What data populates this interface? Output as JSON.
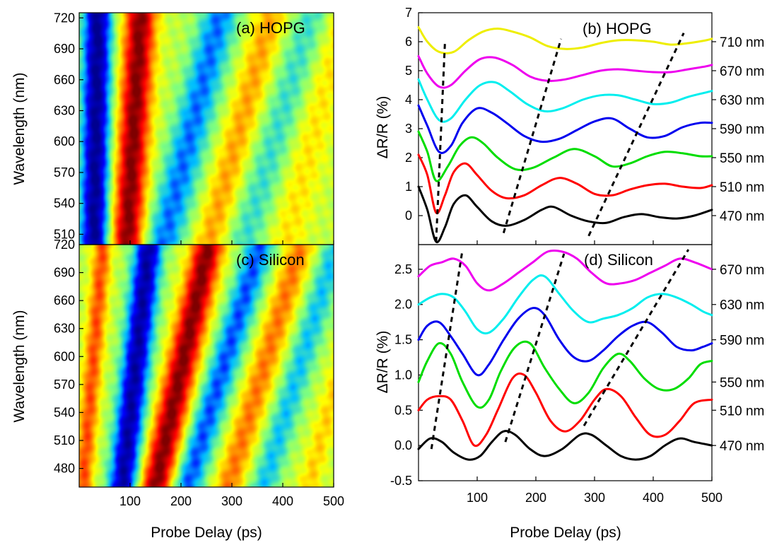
{
  "chart_data": [
    {
      "type": "heatmap",
      "panel": "(a) HOPG",
      "xlim": [
        0,
        500
      ],
      "ylim": [
        500,
        725
      ],
      "xticks": [
        "100",
        "200",
        "300",
        "400",
        "500"
      ],
      "yticks": [
        "510",
        "540",
        "570",
        "600",
        "630",
        "660",
        "690",
        "720"
      ],
      "ylabel": "Wavelength (nm)",
      "colormap": [
        "#00008f",
        "#0000ff",
        "#00bfff",
        "#7fff7f",
        "#ffff00",
        "#ff7f00",
        "#ff0000",
        "#7f0000"
      ],
      "bands": [
        {
          "delay_at_510": 30,
          "slope_ps_per_nm": 0.03,
          "amp": -1.0,
          "width": 28
        },
        {
          "delay_at_510": 95,
          "slope_ps_per_nm": 0.12,
          "amp": 1.0,
          "width": 30
        },
        {
          "delay_at_510": 170,
          "slope_ps_per_nm": 0.5,
          "amp": -0.55,
          "width": 38
        },
        {
          "delay_at_510": 260,
          "slope_ps_per_nm": 0.55,
          "amp": 0.35,
          "width": 32
        },
        {
          "delay_at_510": 330,
          "slope_ps_per_nm": 0.6,
          "amp": -0.3,
          "width": 38
        },
        {
          "delay_at_510": 410,
          "slope_ps_per_nm": 0.5,
          "amp": 0.2,
          "width": 38
        }
      ]
    },
    {
      "type": "heatmap",
      "panel": "(c) Silicon",
      "xlim": [
        0,
        500
      ],
      "ylim": [
        460,
        720
      ],
      "xticks": [
        "100",
        "200",
        "300",
        "400",
        "500"
      ],
      "yticks": [
        "480",
        "510",
        "540",
        "570",
        "600",
        "630",
        "660",
        "690",
        "720"
      ],
      "ylabel": "Wavelength (nm)",
      "xlabel": "Probe Delay (ps)",
      "bands": [
        {
          "delay_at_510": 15,
          "slope_ps_per_nm": 0.15,
          "amp": 0.55,
          "width": 18
        },
        {
          "delay_at_510": 95,
          "slope_ps_per_nm": 0.2,
          "amp": -0.95,
          "width": 28
        },
        {
          "delay_at_510": 170,
          "slope_ps_per_nm": 0.4,
          "amp": 1.0,
          "width": 30
        },
        {
          "delay_at_510": 240,
          "slope_ps_per_nm": 0.55,
          "amp": -0.6,
          "width": 30
        },
        {
          "delay_at_510": 320,
          "slope_ps_per_nm": 0.55,
          "amp": 0.45,
          "width": 28
        },
        {
          "delay_at_510": 390,
          "slope_ps_per_nm": 0.55,
          "amp": -0.4,
          "width": 28
        },
        {
          "delay_at_510": 475,
          "slope_ps_per_nm": 0.5,
          "amp": 0.25,
          "width": 22
        }
      ]
    },
    {
      "type": "line",
      "panel": "(b) HOPG",
      "xlim": [
        0,
        500
      ],
      "ylim": [
        -1,
        7
      ],
      "xticks": [
        "100",
        "200",
        "300",
        "400",
        "500"
      ],
      "yticks": [
        "0",
        "1",
        "2",
        "3",
        "4",
        "5",
        "6",
        "7"
      ],
      "ylabel": "ΔR/R (%)",
      "series": [
        {
          "name": "470 nm",
          "color": "#000000",
          "offset": 0.0,
          "x": [
            0,
            15,
            30,
            45,
            60,
            80,
            100,
            125,
            150,
            180,
            210,
            230,
            260,
            290,
            320,
            350,
            380,
            410,
            440,
            470,
            500
          ],
          "y": [
            1.0,
            0.2,
            -0.9,
            -0.4,
            0.4,
            0.7,
            0.3,
            -0.2,
            -0.35,
            -0.15,
            0.2,
            0.3,
            0.0,
            -0.2,
            -0.25,
            -0.05,
            0.05,
            -0.05,
            -0.1,
            0.0,
            0.2
          ]
        },
        {
          "name": "510 nm",
          "color": "#ff0000",
          "offset": 1.0,
          "x": [
            0,
            15,
            30,
            45,
            60,
            80,
            100,
            125,
            150,
            180,
            210,
            240,
            270,
            300,
            330,
            360,
            390,
            420,
            450,
            480,
            500
          ],
          "y": [
            1.1,
            0.4,
            -0.9,
            -0.3,
            0.5,
            0.8,
            0.4,
            -0.15,
            -0.4,
            -0.3,
            0.05,
            0.3,
            0.1,
            -0.25,
            -0.3,
            -0.1,
            0.05,
            0.1,
            0.0,
            -0.05,
            0.05
          ]
        },
        {
          "name": "550 nm",
          "color": "#00dd00",
          "offset": 2.0,
          "x": [
            0,
            15,
            30,
            50,
            70,
            90,
            110,
            135,
            165,
            195,
            230,
            265,
            300,
            330,
            360,
            390,
            420,
            450,
            480,
            500
          ],
          "y": [
            0.9,
            0.2,
            -0.8,
            -0.3,
            0.4,
            0.7,
            0.5,
            0.0,
            -0.4,
            -0.35,
            0.0,
            0.3,
            0.05,
            -0.3,
            -0.2,
            0.05,
            0.2,
            0.15,
            0.05,
            0.05
          ]
        },
        {
          "name": "590 nm",
          "color": "#0000ee",
          "offset": 3.0,
          "x": [
            0,
            15,
            35,
            55,
            75,
            100,
            125,
            150,
            180,
            210,
            240,
            270,
            300,
            330,
            360,
            390,
            420,
            450,
            480,
            500
          ],
          "y": [
            0.8,
            0.1,
            -0.8,
            -0.6,
            0.2,
            0.7,
            0.55,
            0.2,
            -0.25,
            -0.45,
            -0.35,
            -0.05,
            0.25,
            0.35,
            0.0,
            -0.3,
            -0.25,
            0.05,
            0.2,
            0.2
          ]
        },
        {
          "name": "630 nm",
          "color": "#00eeee",
          "offset": 4.0,
          "x": [
            0,
            15,
            35,
            55,
            80,
            105,
            130,
            155,
            185,
            215,
            245,
            280,
            310,
            340,
            370,
            400,
            430,
            460,
            490,
            500
          ],
          "y": [
            0.7,
            0.0,
            -0.7,
            -0.65,
            0.0,
            0.5,
            0.6,
            0.3,
            -0.15,
            -0.4,
            -0.3,
            0.0,
            0.15,
            0.15,
            0.0,
            -0.15,
            -0.1,
            0.1,
            0.25,
            0.3
          ]
        },
        {
          "name": "670 nm",
          "color": "#ee00ee",
          "offset": 5.0,
          "x": [
            0,
            15,
            35,
            55,
            80,
            105,
            130,
            160,
            190,
            220,
            250,
            280,
            310,
            340,
            370,
            400,
            430,
            460,
            490,
            500
          ],
          "y": [
            0.5,
            -0.1,
            -0.55,
            -0.5,
            0.0,
            0.4,
            0.45,
            0.2,
            -0.2,
            -0.35,
            -0.3,
            -0.15,
            0.0,
            0.05,
            0.0,
            -0.05,
            -0.05,
            0.05,
            0.15,
            0.2
          ]
        },
        {
          "name": "710 nm",
          "color": "#eeee00",
          "offset": 6.0,
          "x": [
            0,
            15,
            35,
            60,
            85,
            110,
            135,
            160,
            190,
            220,
            250,
            280,
            310,
            340,
            370,
            400,
            430,
            460,
            490,
            500
          ],
          "y": [
            0.5,
            0.0,
            -0.35,
            -0.35,
            0.05,
            0.35,
            0.45,
            0.35,
            0.15,
            -0.15,
            -0.25,
            -0.2,
            -0.05,
            0.05,
            0.05,
            0.0,
            -0.1,
            -0.05,
            0.05,
            0.1
          ]
        }
      ],
      "dashed_guides": [
        {
          "x": [
            30,
            45
          ],
          "y": [
            -0.9,
            5.95
          ]
        },
        {
          "x": [
            145,
            243
          ],
          "y": [
            -0.6,
            6.1
          ]
        },
        {
          "x": [
            290,
            452
          ],
          "y": [
            -0.7,
            6.3
          ]
        }
      ]
    },
    {
      "type": "line",
      "panel": "(d) Silicon",
      "xlim": [
        0,
        500
      ],
      "ylim": [
        -0.5,
        2.85
      ],
      "xticks": [
        "100",
        "200",
        "300",
        "400",
        "500"
      ],
      "yticks": [
        "-0.5",
        "0.0",
        "0.5",
        "1.0",
        "1.5",
        "2.0",
        "2.5"
      ],
      "ylabel": "ΔR/R (%)",
      "xlabel": "Probe Delay (ps)",
      "series": [
        {
          "name": "470 nm",
          "color": "#000000",
          "offset": 0.0,
          "x": [
            0,
            20,
            40,
            60,
            85,
            105,
            125,
            145,
            165,
            190,
            215,
            245,
            275,
            295,
            320,
            345,
            370,
            395,
            420,
            445,
            470,
            500
          ],
          "y": [
            -0.05,
            0.1,
            0.05,
            -0.1,
            -0.2,
            -0.15,
            0.05,
            0.2,
            0.15,
            -0.05,
            -0.15,
            -0.05,
            0.15,
            0.15,
            0.0,
            -0.15,
            -0.2,
            -0.15,
            0.0,
            0.1,
            0.05,
            0.0
          ]
        },
        {
          "name": "510 nm",
          "color": "#ff0000",
          "offset": 0.5,
          "x": [
            0,
            15,
            35,
            55,
            75,
            95,
            115,
            135,
            160,
            180,
            200,
            225,
            250,
            275,
            300,
            320,
            345,
            370,
            395,
            420,
            445,
            470,
            500
          ],
          "y": [
            0.0,
            0.15,
            0.2,
            0.15,
            -0.15,
            -0.5,
            -0.35,
            0.0,
            0.45,
            0.5,
            0.25,
            -0.15,
            -0.3,
            -0.15,
            0.15,
            0.3,
            0.2,
            -0.1,
            -0.35,
            -0.35,
            -0.15,
            0.1,
            0.15
          ]
        },
        {
          "name": "550 nm",
          "color": "#00dd00",
          "offset": 0.9,
          "x": [
            0,
            15,
            35,
            55,
            75,
            100,
            120,
            140,
            165,
            190,
            215,
            240,
            265,
            290,
            315,
            340,
            360,
            385,
            410,
            435,
            460,
            480,
            500
          ],
          "y": [
            0.0,
            0.3,
            0.55,
            0.4,
            0.0,
            -0.35,
            -0.25,
            0.15,
            0.5,
            0.55,
            0.2,
            -0.1,
            -0.3,
            -0.15,
            0.2,
            0.4,
            0.3,
            0.05,
            -0.1,
            -0.1,
            0.05,
            0.25,
            0.3
          ]
        },
        {
          "name": "590 nm",
          "color": "#0000ee",
          "offset": 1.5,
          "x": [
            0,
            15,
            35,
            55,
            75,
            100,
            120,
            145,
            170,
            195,
            215,
            240,
            265,
            290,
            315,
            340,
            365,
            390,
            415,
            440,
            465,
            485,
            500
          ],
          "y": [
            0.0,
            0.2,
            0.25,
            0.05,
            -0.2,
            -0.5,
            -0.35,
            0.0,
            0.3,
            0.45,
            0.35,
            0.0,
            -0.25,
            -0.3,
            -0.15,
            0.05,
            0.2,
            0.25,
            0.1,
            -0.1,
            -0.15,
            -0.1,
            -0.05
          ]
        },
        {
          "name": "630 nm",
          "color": "#00eeee",
          "offset": 2.0,
          "x": [
            0,
            20,
            40,
            60,
            80,
            100,
            120,
            145,
            170,
            195,
            215,
            240,
            265,
            290,
            315,
            340,
            365,
            390,
            415,
            440,
            465,
            485,
            500
          ],
          "y": [
            0.0,
            0.1,
            0.15,
            0.1,
            -0.1,
            -0.35,
            -0.4,
            -0.2,
            0.1,
            0.35,
            0.4,
            0.15,
            -0.1,
            -0.25,
            -0.2,
            -0.15,
            -0.05,
            0.1,
            0.15,
            0.1,
            0.0,
            -0.1,
            -0.15
          ]
        },
        {
          "name": "670 nm",
          "color": "#ee00ee",
          "offset": 2.5,
          "x": [
            0,
            20,
            40,
            60,
            80,
            100,
            120,
            145,
            170,
            195,
            220,
            245,
            270,
            295,
            320,
            345,
            370,
            395,
            420,
            445,
            470,
            500
          ],
          "y": [
            -0.1,
            0.05,
            0.1,
            0.15,
            0.05,
            -0.2,
            -0.3,
            -0.2,
            -0.05,
            0.1,
            0.25,
            0.25,
            0.15,
            -0.05,
            -0.2,
            -0.2,
            -0.15,
            -0.05,
            0.05,
            0.15,
            0.1,
            0.0
          ]
        }
      ],
      "dashed_guides": [
        {
          "x": [
            22,
            75
          ],
          "y": [
            -0.05,
            2.78
          ]
        },
        {
          "x": [
            148,
            248
          ],
          "y": [
            0.05,
            2.72
          ]
        },
        {
          "x": [
            282,
            460
          ],
          "y": [
            0.28,
            2.78
          ]
        }
      ]
    }
  ],
  "labels": {
    "xlabel_left": "Probe Delay (ps)",
    "xlabel_right": "Probe Delay (ps)",
    "ylabel_a": "Wavelength (nm)",
    "ylabel_c": "Wavelength (nm)",
    "ylabel_b": "ΔR/R (%)",
    "ylabel_d": "ΔR/R (%)",
    "panel_a": "(a) HOPG",
    "panel_b": "(b) HOPG",
    "panel_c": "(c) Silicon",
    "panel_d": "(d) Silicon"
  }
}
